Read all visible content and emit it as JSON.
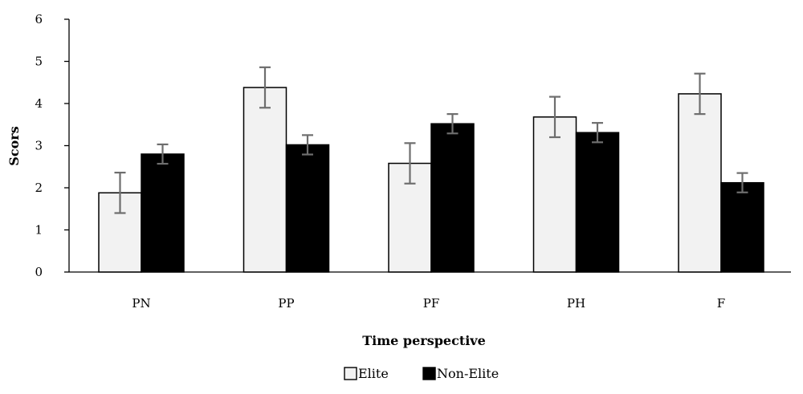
{
  "chart_data": {
    "type": "bar",
    "categories": [
      "PN",
      "PP",
      "PF",
      "PH",
      "F"
    ],
    "series": [
      {
        "name": "Elite",
        "color": "#f2f2f2",
        "values": [
          1.88,
          4.38,
          2.58,
          3.68,
          4.23
        ],
        "error": [
          0.48,
          0.48,
          0.48,
          0.48,
          0.48
        ]
      },
      {
        "name": "Non-Elite",
        "color": "#000000",
        "values": [
          2.8,
          3.02,
          3.52,
          3.31,
          2.12
        ],
        "error": [
          0.23,
          0.23,
          0.23,
          0.23,
          0.23
        ]
      }
    ],
    "xlabel": "Time perspective",
    "ylabel": "Scors",
    "ylim": [
      0,
      6
    ],
    "yticks": [
      0,
      1,
      2,
      3,
      4,
      5,
      6
    ],
    "grid": false,
    "legend_position": "bottom-center",
    "error_bar_color": "#6e6e6e"
  }
}
